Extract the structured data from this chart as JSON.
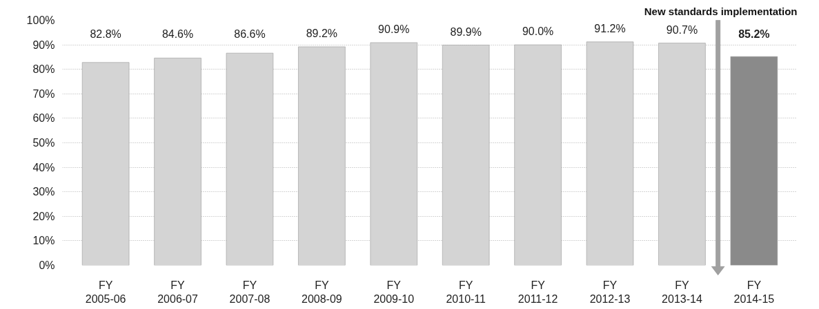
{
  "chart_data": {
    "type": "bar",
    "categories": [
      "FY 2005-06",
      "FY 2006-07",
      "FY 2007-08",
      "FY 2008-09",
      "FY 2009-10",
      "FY 2010-11",
      "FY 2011-12",
      "FY 2012-13",
      "FY 2013-14",
      "FY 2014-15"
    ],
    "values": [
      82.8,
      84.6,
      86.6,
      89.2,
      90.9,
      89.9,
      90.0,
      91.2,
      90.7,
      85.2
    ],
    "value_labels": [
      "82.8%",
      "84.6%",
      "86.6%",
      "89.2%",
      "90.9%",
      "89.9%",
      "90.0%",
      "91.2%",
      "90.7%",
      "85.2%"
    ],
    "colors": [
      "#d4d4d4",
      "#d4d4d4",
      "#d4d4d4",
      "#d4d4d4",
      "#d4d4d4",
      "#d4d4d4",
      "#d4d4d4",
      "#d4d4d4",
      "#d4d4d4",
      "#8a8a8a"
    ],
    "ylim": [
      0,
      100
    ],
    "yticks": [
      {
        "value": 0,
        "label": "0%"
      },
      {
        "value": 10,
        "label": "10%"
      },
      {
        "value": 20,
        "label": "20%"
      },
      {
        "value": 30,
        "label": "30%"
      },
      {
        "value": 40,
        "label": "40%"
      },
      {
        "value": 50,
        "label": "50%"
      },
      {
        "value": 60,
        "label": "60%"
      },
      {
        "value": 70,
        "label": "70%"
      },
      {
        "value": 80,
        "label": "80%"
      },
      {
        "value": 90,
        "label": "90%"
      },
      {
        "value": 100,
        "label": "100%"
      }
    ],
    "grid": "y",
    "annotations": [
      "New standards implementation"
    ]
  }
}
